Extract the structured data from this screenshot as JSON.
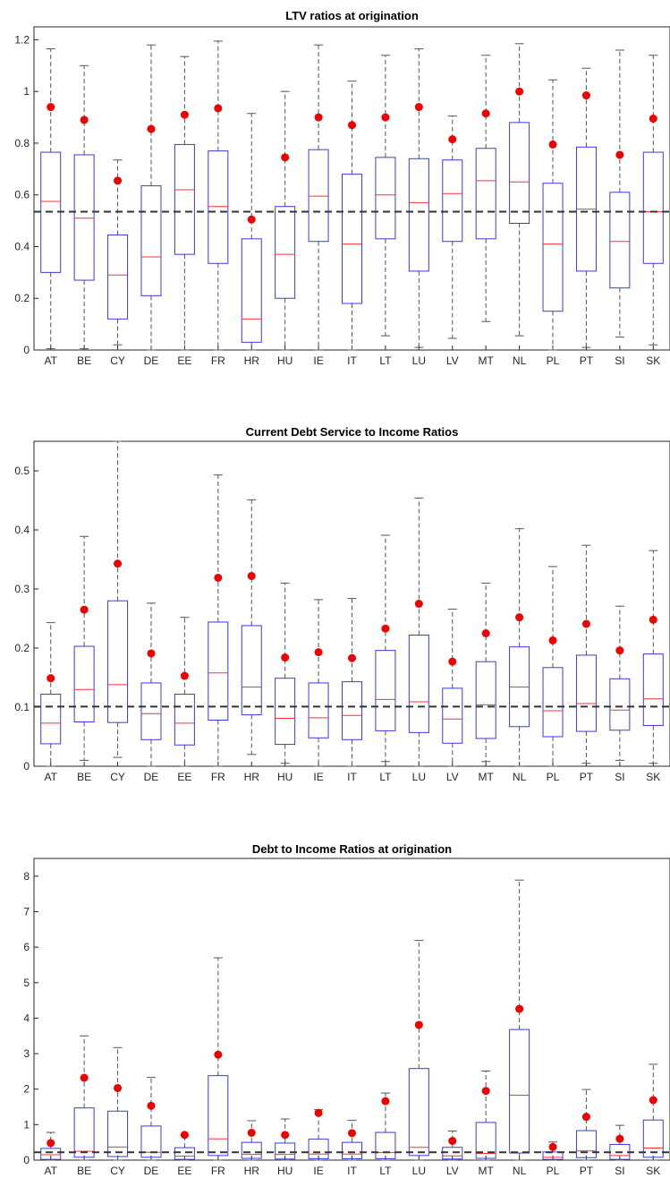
{
  "chart_data": [
    {
      "type": "boxplot",
      "title": "LTV ratios at origination",
      "categories": [
        "AT",
        "BE",
        "CY",
        "DE",
        "EE",
        "FR",
        "HR",
        "HU",
        "IE",
        "IT",
        "LT",
        "LU",
        "LV",
        "MT",
        "NL",
        "PL",
        "PT",
        "SI",
        "SK"
      ],
      "ylim": [
        0,
        1.25
      ],
      "yticks": [
        0,
        0.2,
        0.4,
        0.6,
        0.8,
        1,
        1.2
      ],
      "ytick_labels": [
        "0",
        "0.2",
        "0.4",
        "0.6",
        "0.8",
        "1",
        "1.2"
      ],
      "reference_line": 0.535,
      "boxes": [
        {
          "whisker_low": 0.005,
          "q1": 0.3,
          "median": 0.575,
          "q3": 0.765,
          "whisker_high": 1.165
        },
        {
          "whisker_low": 0.005,
          "q1": 0.27,
          "median": 0.51,
          "q3": 0.755,
          "whisker_high": 1.1
        },
        {
          "whisker_low": 0.02,
          "q1": 0.12,
          "median": 0.29,
          "q3": 0.445,
          "whisker_high": 0.735
        },
        {
          "whisker_low": 0.0,
          "q1": 0.21,
          "median": 0.36,
          "q3": 0.635,
          "whisker_high": 1.18
        },
        {
          "whisker_low": 0.0,
          "q1": 0.37,
          "median": 0.62,
          "q3": 0.795,
          "whisker_high": 1.135
        },
        {
          "whisker_low": 0.0,
          "q1": 0.335,
          "median": 0.555,
          "q3": 0.77,
          "whisker_high": 1.195
        },
        {
          "whisker_low": 0.0,
          "q1": 0.03,
          "median": 0.12,
          "q3": 0.43,
          "whisker_high": 0.915
        },
        {
          "whisker_low": 0.0,
          "q1": 0.2,
          "median": 0.37,
          "q3": 0.555,
          "whisker_high": 1.0
        },
        {
          "whisker_low": 0.0,
          "q1": 0.42,
          "median": 0.595,
          "q3": 0.775,
          "whisker_high": 1.18
        },
        {
          "whisker_low": 0.0,
          "q1": 0.18,
          "median": 0.41,
          "q3": 0.68,
          "whisker_high": 1.04
        },
        {
          "whisker_low": 0.055,
          "q1": 0.43,
          "median": 0.6,
          "q3": 0.745,
          "whisker_high": 1.14
        },
        {
          "whisker_low": 0.01,
          "q1": 0.305,
          "median": 0.57,
          "q3": 0.74,
          "whisker_high": 1.165
        },
        {
          "whisker_low": 0.045,
          "q1": 0.42,
          "median": 0.605,
          "q3": 0.735,
          "whisker_high": 0.905
        },
        {
          "whisker_low": 0.11,
          "q1": 0.43,
          "median": 0.655,
          "q3": 0.78,
          "whisker_high": 1.14
        },
        {
          "whisker_low": 0.055,
          "q1": 0.49,
          "median": 0.65,
          "q3": 0.88,
          "whisker_high": 1.185
        },
        {
          "whisker_low": 0.0,
          "q1": 0.15,
          "median": 0.41,
          "q3": 0.645,
          "whisker_high": 1.045
        },
        {
          "whisker_low": 0.01,
          "q1": 0.305,
          "median": 0.545,
          "q3": 0.785,
          "whisker_high": 1.09
        },
        {
          "whisker_low": 0.05,
          "q1": 0.24,
          "median": 0.42,
          "q3": 0.61,
          "whisker_high": 1.16
        },
        {
          "whisker_low": 0.02,
          "q1": 0.335,
          "median": 0.535,
          "q3": 0.765,
          "whisker_high": 1.14
        }
      ],
      "means": [
        0.94,
        0.89,
        0.655,
        0.855,
        0.91,
        0.935,
        0.505,
        0.745,
        0.9,
        0.87,
        0.9,
        0.94,
        0.815,
        0.915,
        1.0,
        0.795,
        0.985,
        0.755,
        0.895
      ]
    },
    {
      "type": "boxplot",
      "title": "Current Debt Service to Income Ratios",
      "categories": [
        "AT",
        "BE",
        "CY",
        "DE",
        "EE",
        "FR",
        "HR",
        "HU",
        "IE",
        "IT",
        "LT",
        "LU",
        "LV",
        "MT",
        "NL",
        "PL",
        "PT",
        "SI",
        "SK"
      ],
      "ylim": [
        0,
        0.55
      ],
      "yticks": [
        0,
        0.1,
        0.2,
        0.3,
        0.4,
        0.5
      ],
      "ytick_labels": [
        "0",
        "0.1",
        "0.2",
        "0.3",
        "0.4",
        "0.5"
      ],
      "reference_line": 0.101,
      "boxes": [
        {
          "whisker_low": 0.0,
          "q1": 0.038,
          "median": 0.073,
          "q3": 0.122,
          "whisker_high": 0.243
        },
        {
          "whisker_low": 0.01,
          "q1": 0.075,
          "median": 0.13,
          "q3": 0.203,
          "whisker_high": 0.389
        },
        {
          "whisker_low": 0.015,
          "q1": 0.074,
          "median": 0.138,
          "q3": 0.28,
          "whisker_high": 0.55
        },
        {
          "whisker_low": 0.0,
          "q1": 0.045,
          "median": 0.089,
          "q3": 0.141,
          "whisker_high": 0.276
        },
        {
          "whisker_low": 0.0,
          "q1": 0.036,
          "median": 0.073,
          "q3": 0.122,
          "whisker_high": 0.252
        },
        {
          "whisker_low": 0.0,
          "q1": 0.078,
          "median": 0.158,
          "q3": 0.244,
          "whisker_high": 0.493
        },
        {
          "whisker_low": 0.02,
          "q1": 0.087,
          "median": 0.134,
          "q3": 0.238,
          "whisker_high": 0.451
        },
        {
          "whisker_low": 0.005,
          "q1": 0.037,
          "median": 0.081,
          "q3": 0.149,
          "whisker_high": 0.31
        },
        {
          "whisker_low": 0.0,
          "q1": 0.048,
          "median": 0.082,
          "q3": 0.141,
          "whisker_high": 0.282
        },
        {
          "whisker_low": 0.0,
          "q1": 0.045,
          "median": 0.086,
          "q3": 0.143,
          "whisker_high": 0.284
        },
        {
          "whisker_low": 0.008,
          "q1": 0.06,
          "median": 0.113,
          "q3": 0.196,
          "whisker_high": 0.391
        },
        {
          "whisker_low": 0.0,
          "q1": 0.057,
          "median": 0.109,
          "q3": 0.222,
          "whisker_high": 0.454
        },
        {
          "whisker_low": 0.0,
          "q1": 0.039,
          "median": 0.08,
          "q3": 0.132,
          "whisker_high": 0.266
        },
        {
          "whisker_low": 0.008,
          "q1": 0.047,
          "median": 0.104,
          "q3": 0.177,
          "whisker_high": 0.31
        },
        {
          "whisker_low": 0.0,
          "q1": 0.067,
          "median": 0.134,
          "q3": 0.202,
          "whisker_high": 0.402
        },
        {
          "whisker_low": 0.0,
          "q1": 0.05,
          "median": 0.094,
          "q3": 0.167,
          "whisker_high": 0.338
        },
        {
          "whisker_low": 0.005,
          "q1": 0.059,
          "median": 0.106,
          "q3": 0.188,
          "whisker_high": 0.374
        },
        {
          "whisker_low": 0.01,
          "q1": 0.061,
          "median": 0.095,
          "q3": 0.148,
          "whisker_high": 0.271
        },
        {
          "whisker_low": 0.005,
          "q1": 0.069,
          "median": 0.114,
          "q3": 0.19,
          "whisker_high": 0.365
        }
      ],
      "means": [
        0.149,
        0.265,
        0.343,
        0.191,
        0.153,
        0.319,
        0.322,
        0.184,
        0.193,
        0.183,
        0.233,
        0.275,
        0.177,
        0.225,
        0.252,
        0.213,
        0.241,
        0.196,
        0.248
      ]
    },
    {
      "type": "boxplot",
      "title": "Debt to Income Ratios at origination",
      "categories": [
        "AT",
        "BE",
        "CY",
        "DE",
        "EE",
        "FR",
        "HR",
        "HU",
        "IE",
        "IT",
        "LT",
        "LU",
        "LV",
        "MT",
        "NL",
        "PL",
        "PT",
        "SI",
        "SK"
      ],
      "ylim": [
        0,
        8.5
      ],
      "yticks": [
        0,
        1,
        2,
        3,
        4,
        5,
        6,
        7,
        8
      ],
      "ytick_labels": [
        "0",
        "1",
        "2",
        "3",
        "4",
        "5",
        "6",
        "7",
        "8"
      ],
      "reference_line": 0.22,
      "boxes": [
        {
          "whisker_low": 0.0,
          "q1": 0.02,
          "median": 0.15,
          "q3": 0.33,
          "whisker_high": 0.78
        },
        {
          "whisker_low": 0.0,
          "q1": 0.08,
          "median": 0.25,
          "q3": 1.47,
          "whisker_high": 3.5
        },
        {
          "whisker_low": 0.0,
          "q1": 0.1,
          "median": 0.37,
          "q3": 1.38,
          "whisker_high": 3.17
        },
        {
          "whisker_low": 0.0,
          "q1": 0.08,
          "median": 0.22,
          "q3": 0.96,
          "whisker_high": 2.33
        },
        {
          "whisker_low": 0.0,
          "q1": 0.02,
          "median": 0.11,
          "q3": 0.35,
          "whisker_high": 0.7
        },
        {
          "whisker_low": 0.0,
          "q1": 0.13,
          "median": 0.6,
          "q3": 2.38,
          "whisker_high": 5.7
        },
        {
          "whisker_low": 0.0,
          "q1": 0.05,
          "median": 0.16,
          "q3": 0.5,
          "whisker_high": 1.11
        },
        {
          "whisker_low": 0.0,
          "q1": 0.03,
          "median": 0.16,
          "q3": 0.48,
          "whisker_high": 1.16
        },
        {
          "whisker_low": 0.0,
          "q1": 0.04,
          "median": 0.17,
          "q3": 0.59,
          "whisker_high": 1.42
        },
        {
          "whisker_low": 0.0,
          "q1": 0.04,
          "median": 0.17,
          "q3": 0.5,
          "whisker_high": 1.12
        },
        {
          "whisker_low": 0.0,
          "q1": 0.04,
          "median": 0.21,
          "q3": 0.78,
          "whisker_high": 1.89
        },
        {
          "whisker_low": 0.0,
          "q1": 0.13,
          "median": 0.36,
          "q3": 2.58,
          "whisker_high": 6.19
        },
        {
          "whisker_low": 0.0,
          "q1": 0.03,
          "median": 0.12,
          "q3": 0.36,
          "whisker_high": 0.82
        },
        {
          "whisker_low": 0.0,
          "q1": 0.05,
          "median": 0.19,
          "q3": 1.06,
          "whisker_high": 2.51
        },
        {
          "whisker_low": 0.0,
          "q1": 0.2,
          "median": 1.83,
          "q3": 3.68,
          "whisker_high": 7.89
        },
        {
          "whisker_low": 0.0,
          "q1": 0.02,
          "median": 0.08,
          "q3": 0.23,
          "whisker_high": 0.51
        },
        {
          "whisker_low": 0.0,
          "q1": 0.07,
          "median": 0.26,
          "q3": 0.83,
          "whisker_high": 1.99
        },
        {
          "whisker_low": 0.0,
          "q1": 0.02,
          "median": 0.13,
          "q3": 0.44,
          "whisker_high": 0.98
        },
        {
          "whisker_low": 0.0,
          "q1": 0.08,
          "median": 0.34,
          "q3": 1.13,
          "whisker_high": 2.7
        }
      ],
      "means": [
        0.48,
        2.32,
        2.03,
        1.53,
        0.71,
        2.97,
        0.77,
        0.71,
        1.33,
        0.76,
        1.66,
        3.81,
        0.54,
        1.95,
        4.26,
        0.37,
        1.22,
        0.6,
        1.69
      ]
    }
  ],
  "colors": {
    "box": "#3a3ae0",
    "median": "#ff3030",
    "whisker": "#555555",
    "mean_marker": "#ee0000",
    "reference_line": "#333333",
    "axes": "#262626"
  }
}
